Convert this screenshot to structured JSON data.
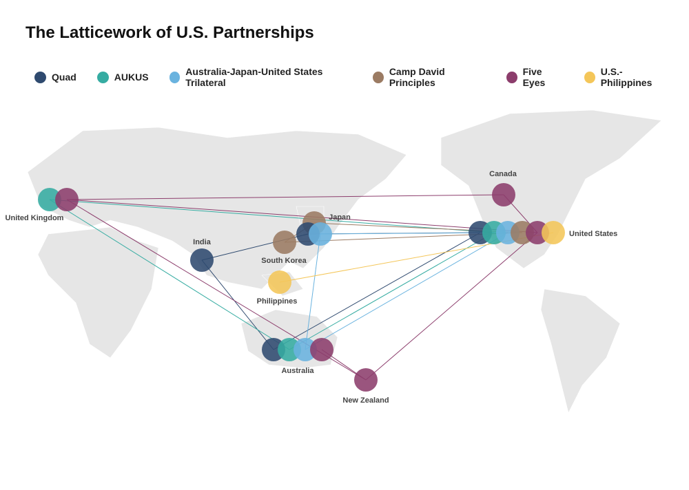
{
  "title": "The Latticework of U.S. Partnerships",
  "legend": [
    {
      "name": "Quad",
      "color": "#2f4a6f"
    },
    {
      "name": "AUKUS",
      "color": "#36aca2"
    },
    {
      "name": "Australia-Japan-United States Trilateral",
      "color": "#6ab3df"
    },
    {
      "name": "Camp David Principles",
      "color": "#9b7b63"
    },
    {
      "name": "Five Eyes",
      "color": "#8c3d6c"
    },
    {
      "name": "U.S.-Philippines",
      "color": "#f4c659"
    }
  ],
  "places": [
    "United Kingdom",
    "India",
    "Japan",
    "South Korea",
    "Philippines",
    "United States",
    "Canada",
    "Australia",
    "New Zealand"
  ]
}
